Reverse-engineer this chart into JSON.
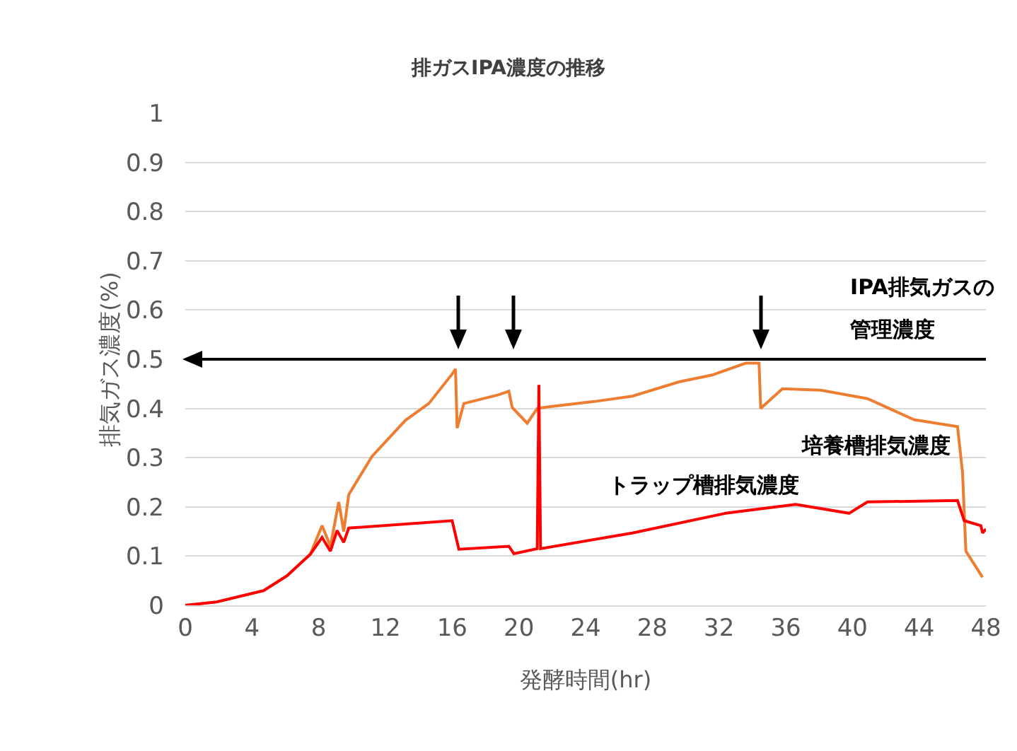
{
  "chart_data": {
    "type": "line",
    "title": "排ガスIPA濃度の推移",
    "xlabel": "発酵時間(hr)",
    "ylabel": "排気ガス濃度(%)",
    "xlim": [
      0,
      48
    ],
    "xticks": [
      0,
      4,
      8,
      12,
      16,
      20,
      24,
      28,
      32,
      36,
      40,
      44,
      48
    ],
    "ylim": [
      0,
      1
    ],
    "yticks": [
      0,
      0.1,
      0.2,
      0.3,
      0.4,
      0.5,
      0.6,
      0.7,
      0.8,
      0.9,
      1
    ],
    "grid": "y",
    "legend": false,
    "marker": "none",
    "line_style": "solid",
    "series": [
      {
        "name": "培養槽排気濃度",
        "color": "#ed7d31",
        "x": [
          0,
          1.9,
          4.7,
          6.1,
          7.5,
          8.2,
          8.7,
          9.2,
          9.5,
          9.8,
          11.2,
          13.2,
          14.6,
          16.0,
          16.2,
          16.3,
          16.7,
          18.8,
          19.4,
          19.6,
          20.5,
          21.1,
          21.7,
          24.5,
          26.8,
          29.6,
          31.6,
          33.6,
          34.4,
          34.5,
          35.8,
          38.1,
          40.9,
          43.7,
          46.3,
          46.6,
          46.8,
          47.8
        ],
        "values": [
          0,
          0.007,
          0.03,
          0.06,
          0.104,
          0.162,
          0.12,
          0.21,
          0.15,
          0.225,
          0.303,
          0.376,
          0.41,
          0.47,
          0.48,
          0.36,
          0.41,
          0.428,
          0.435,
          0.402,
          0.37,
          0.4,
          0.403,
          0.414,
          0.425,
          0.454,
          0.468,
          0.492,
          0.492,
          0.4,
          0.44,
          0.437,
          0.42,
          0.377,
          0.363,
          0.27,
          0.11,
          0.057
        ]
      },
      {
        "name": "トラップ槽排気濃度",
        "color": "#ff0000",
        "x": [
          0,
          1.9,
          4.7,
          6.1,
          7.5,
          8.2,
          8.7,
          9.1,
          9.5,
          9.8,
          16.0,
          16.4,
          19.4,
          19.7,
          21.1,
          21.2,
          21.3,
          26.8,
          32.4,
          36.6,
          39.8,
          40.9,
          46.3,
          46.7,
          47.7,
          47.8,
          48
        ],
        "values": [
          0,
          0.007,
          0.03,
          0.06,
          0.104,
          0.138,
          0.11,
          0.152,
          0.128,
          0.157,
          0.172,
          0.114,
          0.12,
          0.105,
          0.115,
          0.448,
          0.115,
          0.147,
          0.187,
          0.205,
          0.187,
          0.21,
          0.213,
          0.172,
          0.162,
          0.147,
          0.155
        ]
      }
    ],
    "ref_lines": [
      {
        "axis": "y",
        "value": 0.5,
        "label": "IPA排気ガスの管理濃度",
        "color": "#000000",
        "line_style": "solid"
      }
    ]
  }
}
